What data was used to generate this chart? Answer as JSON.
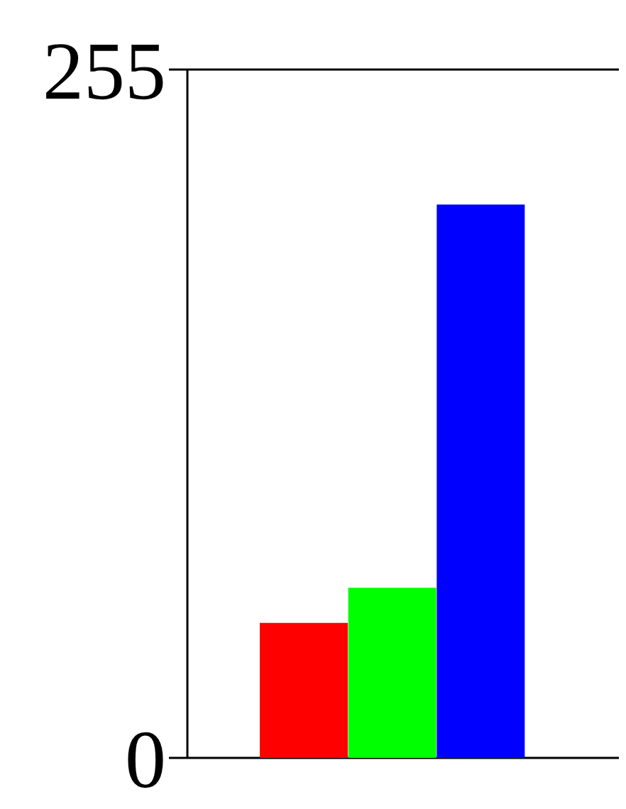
{
  "chart_data": {
    "type": "bar",
    "categories": [
      null,
      null,
      null
    ],
    "values": [
      50,
      63,
      205
    ],
    "colors": [
      "#ff0000",
      "#00ff00",
      "#0000ff"
    ],
    "ylim": [
      0,
      255
    ],
    "yticks": [
      0,
      255
    ],
    "grid": "y",
    "tick_labels": "y"
  }
}
